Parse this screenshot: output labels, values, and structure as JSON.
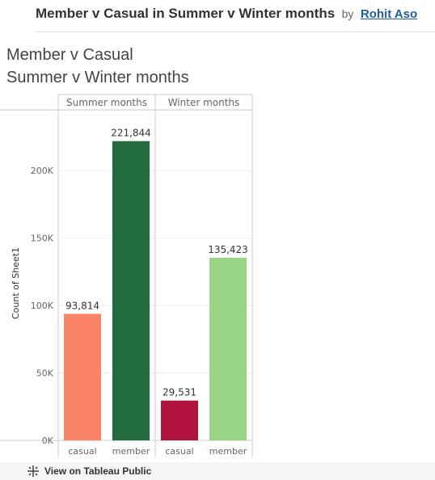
{
  "header": {
    "title": "Member v Casual in Summer v Winter months",
    "by": "by",
    "author": "Rohit Aso"
  },
  "viz_title": {
    "line1": "Member v Casual",
    "line2": "Summer v Winter months"
  },
  "footer": {
    "link": "View on Tableau Public",
    "icon": "tableau-logo-icon"
  },
  "chart_data": {
    "type": "bar",
    "panels": [
      "Summer months",
      "Winter months"
    ],
    "categories": [
      "casual",
      "member"
    ],
    "series": [
      {
        "panel": "Summer months",
        "category": "casual",
        "value": 93814,
        "label": "93,814",
        "color": "#fa8368"
      },
      {
        "panel": "Summer months",
        "category": "member",
        "value": 221844,
        "label": "221,844",
        "color": "#216b3e"
      },
      {
        "panel": "Winter months",
        "category": "casual",
        "value": 29531,
        "label": "29,531",
        "color": "#b0143c"
      },
      {
        "panel": "Winter months",
        "category": "member",
        "value": 135423,
        "label": "135,423",
        "color": "#98d686"
      }
    ],
    "ylabel": "Count of Sheet1",
    "yticks": [
      "0K",
      "50K",
      "100K",
      "150K",
      "200K"
    ],
    "ytick_values": [
      0,
      50000,
      100000,
      150000,
      200000
    ],
    "ylim": [
      0,
      245000
    ],
    "grid": true
  }
}
